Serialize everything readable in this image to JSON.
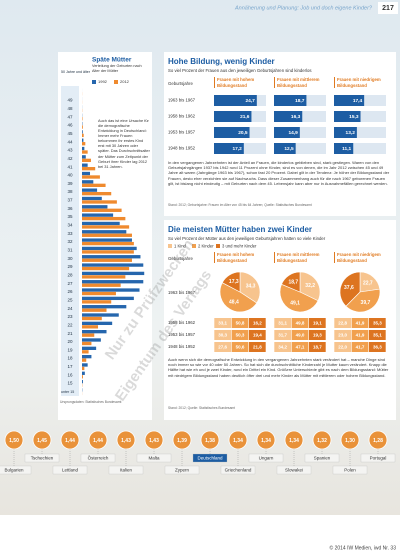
{
  "header": {
    "running_title": "Annäherung und Planung: Job und doch eigene Kinder?",
    "page_number": "217"
  },
  "births_chart": {
    "type": "bar",
    "title": "Späte Mütter",
    "subtitle": "Verteilung der Geburten nach Alter der Mütter",
    "categories": [
      "50 Jahre und älter",
      "49",
      "48",
      "47",
      "46",
      "45",
      "44",
      "43",
      "42",
      "41",
      "40",
      "39",
      "38",
      "37",
      "36",
      "35",
      "34",
      "33",
      "32",
      "31",
      "30",
      "29",
      "28",
      "27",
      "26",
      "25",
      "24",
      "23",
      "22",
      "21",
      "20",
      "19",
      "18",
      "17",
      "16",
      "15",
      "unter 15"
    ],
    "series": [
      {
        "name": "1992",
        "color": "#2566ad",
        "values": [
          20,
          50,
          100,
          200,
          400,
          800,
          1500,
          2500,
          4000,
          6000,
          8500,
          12000,
          16000,
          21000,
          27000,
          33000,
          40000,
          47000,
          53000,
          58000,
          62000,
          65000,
          66000,
          65000,
          61000,
          55000,
          47000,
          39000,
          32000,
          26000,
          20000,
          15000,
          10000,
          6000,
          3000,
          1000,
          300
        ]
      },
      {
        "name": "2012",
        "color": "#ef8a2e",
        "values": [
          100,
          100,
          200,
          500,
          900,
          1800,
          3500,
          6000,
          9500,
          14000,
          19000,
          25000,
          31000,
          37000,
          42000,
          46000,
          50000,
          53000,
          55000,
          55000,
          53000,
          50000,
          46000,
          41000,
          36000,
          31000,
          26000,
          21000,
          17000,
          13000,
          10000,
          7000,
          4500,
          2500,
          1000,
          300,
          100
        ]
      }
    ],
    "xlim": [
      0,
      70000
    ],
    "annotation": "Auch das ist eine Ursache für die demografische Entwicklung in Deutschland: Immer mehr Frauen bekommen ihr erstes Kind erst mit 30 Jahren oder später. Das Durchschnittsalter der Mütter zum Zeitpunkt der Geburt ihrer Kinder lag 2012 bei 31 Jahren.",
    "source": "Ursprungsdaten: Statistisches Bundesamt"
  },
  "childless_chart": {
    "title": "Hohe Bildung, wenig Kinder",
    "subtitle": "So viel Prozent der Frauen aus den jeweiligen Geburtsjahren sind kinderlos",
    "column_headers": [
      "Geburtsjahre",
      "Frauen mit hohem Bildungsstand",
      "Frauen mit mittlerem Bildungsstand",
      "Frauen mit niedrigem Bildungsstand"
    ],
    "rows": [
      {
        "label": "1963 bis 1967",
        "values": [
          24.7,
          18.7,
          17.4
        ],
        "value_labels": [
          "24,7",
          "18,7",
          "17,4"
        ]
      },
      {
        "label": "1958 bis 1962",
        "values": [
          21.6,
          16.3,
          15.3
        ],
        "value_labels": [
          "21,6",
          "16,3",
          "15,3"
        ]
      },
      {
        "label": "1953 bis 1957",
        "values": [
          20.5,
          14.9,
          13.2
        ],
        "value_labels": [
          "20,5",
          "14,9",
          "13,2"
        ]
      },
      {
        "label": "1948 bis 1952",
        "values": [
          17.2,
          12.5,
          11.1
        ],
        "value_labels": [
          "17,2",
          "12,5",
          "11,1"
        ]
      }
    ],
    "xlim": [
      0,
      30
    ],
    "text": "In den vergangenen Jahrzehnten ist der Anteil an Frauen, die kinderlos geblieben sind, stark gestiegen. Waren von den Geburtsjahrgängen 1937 bis 1942 rund 11 Prozent ohne Kinder, sind es von denen, die im Jahr 2012 zwischen 45 und 49 Jahre alt waren (Jahrgänge 1963 bis 1967), schon fast 20 Prozent. Dabei gilt in der Tendenz: Je höher der Bildungsstand der Frauen, desto eher verzichten sie auf Nachwuchs. Dass dieser Zusammenhang auch für die nach 1967 geborenen Frauen gilt, ist bislang nicht eindeutig – mit Geburten nach dem 45. Lebensjahr kann aber nur in Ausnahmefällen gerechnet werden.",
    "source": "Stand: 2012; Geburtsjahre: Frauen im Alter von 45 bis 64 Jahren; Quelle: Statistisches Bundesamt"
  },
  "children_chart": {
    "title": "Die meisten Mütter haben zwei Kinder",
    "subtitle": "So viel Prozent der Mütter aus den jeweiligen Geburtsjahren hatten so viele Kinder",
    "legend": [
      "1 Kind",
      "2 Kinder",
      "3 und mehr Kinder"
    ],
    "colors": [
      "#f7c48e",
      "#f1a04e",
      "#dd7420"
    ],
    "column_headers": [
      "Geburtsjahre",
      "Frauen mit hohem Bildungsstand",
      "Frauen mit mittlerem Bildungsstand",
      "Frauen mit niedrigem Bildungsstand"
    ],
    "pie_row": {
      "label": "1963 bis 1967",
      "groups": [
        {
          "values": [
            34.3,
            48.4,
            17.3
          ],
          "value_labels": [
            "34,3",
            "48,4",
            "17,3"
          ]
        },
        {
          "values": [
            32.2,
            49.1,
            18.7
          ],
          "value_labels": [
            "32,2",
            "49,1",
            "18,7"
          ]
        },
        {
          "values": [
            22.7,
            39.7,
            37.6
          ],
          "value_labels": [
            "22,7",
            "39,7",
            "37,6"
          ]
        }
      ]
    },
    "table_rows": [
      {
        "label": "1958 bis 1962",
        "cells": [
          "33,1",
          "50,8",
          "16,2",
          "31,1",
          "49,8",
          "19,1",
          "22,8",
          "41,9",
          "35,3"
        ]
      },
      {
        "label": "1953 bis 1957",
        "cells": [
          "30,3",
          "50,3",
          "19,4",
          "31,7",
          "49,0",
          "19,3",
          "23,0",
          "41,9",
          "35,1"
        ]
      },
      {
        "label": "1948 bis 1952",
        "cells": [
          "27,6",
          "50,6",
          "21,8",
          "34,2",
          "47,1",
          "18,7",
          "22,0",
          "41,7",
          "36,3"
        ]
      }
    ],
    "text": "Auch wenn sich die demografische Entwicklung in den vergangenen Jahrzehnten stark verändert hat – manche Dinge sind noch immer so wie vor 40 oder 50 Jahren. So hat sich die durchschnittliche Kinderzahl je Mutter kaum verändert. Knapp die Hälfte hat wie eh und je zwei Kinder, rund ein Drittel ein Kind. Größere Unterschiede gibt es nach dem Bildungsstand: Mütter mit niedrigem Bildungsstand haben deutlich öfter drei und mehr Kinder als Mütter mit mittlerem oder hohem Bildungsstand.",
    "source": "Stand: 2012; Quelle: Statistisches Bundesamt"
  },
  "fertility_strip": {
    "countries": [
      "Bulgarien",
      "Tschechien",
      "Lettland",
      "Österreich",
      "Italien",
      "Malta",
      "Zypern",
      "Deutschland",
      "Griechenland",
      "Ungarn",
      "Slowakei",
      "Spanien",
      "Polen",
      "Portugal"
    ],
    "values": [
      1.5,
      1.45,
      1.44,
      1.44,
      1.43,
      1.43,
      1.39,
      1.38,
      1.34,
      1.34,
      1.34,
      1.32,
      1.3,
      1.28
    ],
    "value_labels": [
      "1,50",
      "1,45",
      "1,44",
      "1,44",
      "1,43",
      "1,43",
      "1,39",
      "1,38",
      "1,34",
      "1,34",
      "1,34",
      "1,32",
      "1,30",
      "1,28"
    ],
    "highlight_index": 7
  },
  "watermark": [
    "Nur zu Prüfzwecken",
    "Eigentum des Verlags"
  ],
  "footer": "© 2014 IW Medien, iwd Nr. 33"
}
